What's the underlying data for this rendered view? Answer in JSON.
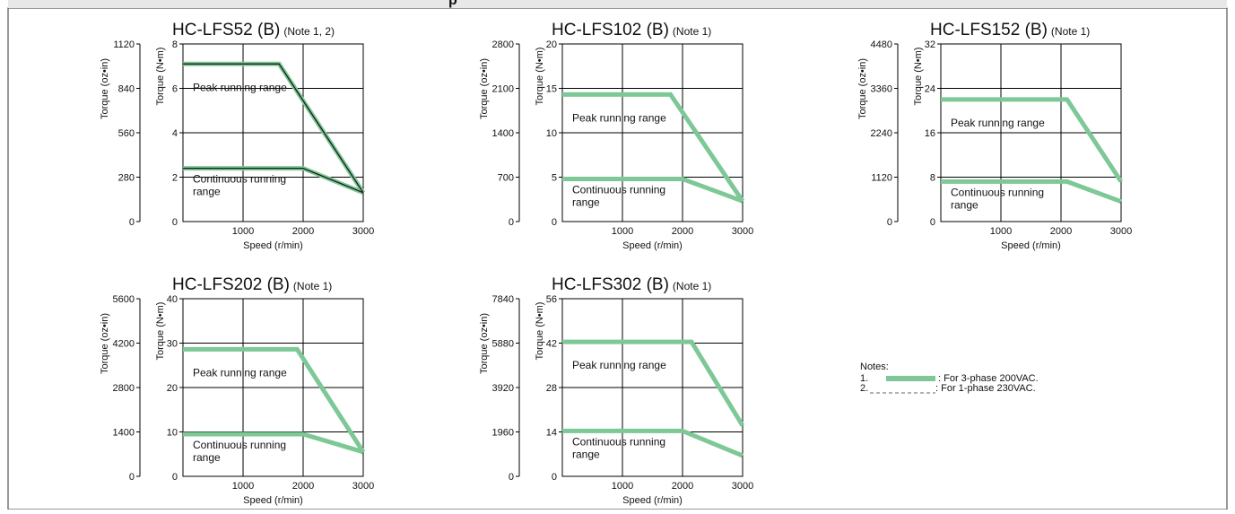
{
  "colors": {
    "three_phase": "#7dc896",
    "one_phase": "#1a1a1a",
    "grid": "#000000",
    "frame": "#555555"
  },
  "header": {
    "visible_fragment": "p"
  },
  "chart_data": [
    {
      "type": "line",
      "title": "HC-LFS52 (B)",
      "note": "(Note 1, 2)",
      "ylabel_primary": "Torque (N•m)",
      "ylabel_secondary": "Torque (oz•in)",
      "xlabel": "Speed (r/min)",
      "xlim": [
        0,
        3000
      ],
      "ylim": [
        0,
        8
      ],
      "x_ticks": [
        "1000",
        "2000",
        "3000"
      ],
      "y_ticks": [
        "0",
        "2",
        "4",
        "6",
        "8"
      ],
      "y2_ticks": [
        "0",
        "280",
        "560",
        "840",
        "1120"
      ],
      "label_peak": "Peak running range",
      "label_continuous": [
        "Continuous running",
        "range"
      ],
      "series": [
        {
          "name": "Peak running range",
          "phase": "3-phase",
          "x": [
            0,
            1600,
            3000
          ],
          "y": [
            7.1,
            7.1,
            1.3
          ]
        },
        {
          "name": "Continuous running range",
          "phase": "3-phase",
          "x": [
            0,
            2000,
            3000
          ],
          "y": [
            2.4,
            2.4,
            1.3
          ]
        },
        {
          "name": "Peak running range",
          "phase": "1-phase",
          "x": [
            0,
            1600,
            3000
          ],
          "y": [
            7.1,
            7.1,
            1.3
          ]
        },
        {
          "name": "Continuous running range",
          "phase": "1-phase",
          "x": [
            0,
            2000,
            3000
          ],
          "y": [
            2.4,
            2.4,
            1.3
          ]
        }
      ]
    },
    {
      "type": "line",
      "title": "HC-LFS102 (B)",
      "note": "(Note 1)",
      "ylabel_primary": "Torque (N•m)",
      "ylabel_secondary": "Torque (oz•in)",
      "xlabel": "Speed (r/min)",
      "xlim": [
        0,
        3000
      ],
      "ylim": [
        0,
        20
      ],
      "x_ticks": [
        "1000",
        "2000",
        "3000"
      ],
      "y_ticks": [
        "0",
        "5",
        "10",
        "15",
        "20"
      ],
      "y2_ticks": [
        "0",
        "700",
        "1400",
        "2100",
        "2800"
      ],
      "label_peak": "Peak running range",
      "label_continuous": [
        "Continuous running",
        "range"
      ],
      "series": [
        {
          "name": "Peak running range",
          "phase": "3-phase",
          "x": [
            0,
            1800,
            3000
          ],
          "y": [
            14.3,
            14.3,
            2.3
          ]
        },
        {
          "name": "Continuous running range",
          "phase": "3-phase",
          "x": [
            0,
            2000,
            3000
          ],
          "y": [
            4.8,
            4.8,
            2.3
          ]
        }
      ]
    },
    {
      "type": "line",
      "title": "HC-LFS152 (B)",
      "note": "(Note 1)",
      "ylabel_primary": "Torque (N•m)",
      "ylabel_secondary": "Torque (oz•in)",
      "xlabel": "Speed (r/min)",
      "xlim": [
        0,
        3000
      ],
      "ylim": [
        0,
        32
      ],
      "x_ticks": [
        "1000",
        "2000",
        "3000"
      ],
      "y_ticks": [
        "0",
        "8",
        "16",
        "24",
        "32"
      ],
      "y2_ticks": [
        "0",
        "1120",
        "2240",
        "3360",
        "4480"
      ],
      "label_peak": "Peak running range",
      "label_continuous": [
        "Continuous running",
        "range"
      ],
      "series": [
        {
          "name": "Peak running range",
          "phase": "3-phase",
          "x": [
            0,
            2100,
            3000
          ],
          "y": [
            22.0,
            22.0,
            7.2
          ]
        },
        {
          "name": "Continuous running range",
          "phase": "3-phase",
          "x": [
            0,
            2100,
            3000
          ],
          "y": [
            7.2,
            7.2,
            3.6
          ]
        }
      ]
    },
    {
      "type": "line",
      "title": "HC-LFS202 (B)",
      "note": "(Note 1)",
      "ylabel_primary": "Torque (N•m)",
      "ylabel_secondary": "Torque (oz•in)",
      "xlabel": "Speed (r/min)",
      "xlim": [
        0,
        3000
      ],
      "ylim": [
        0,
        40
      ],
      "x_ticks": [
        "1000",
        "2000",
        "3000"
      ],
      "y_ticks": [
        "0",
        "10",
        "20",
        "30",
        "40"
      ],
      "y2_ticks": [
        "0",
        "1400",
        "2800",
        "4200",
        "5600"
      ],
      "label_peak": "Peak running range",
      "label_continuous": [
        "Continuous running",
        "range"
      ],
      "series": [
        {
          "name": "Peak running range",
          "phase": "3-phase",
          "x": [
            0,
            1900,
            3000
          ],
          "y": [
            28.6,
            28.6,
            5.5
          ]
        },
        {
          "name": "Continuous running range",
          "phase": "3-phase",
          "x": [
            0,
            2000,
            3000
          ],
          "y": [
            9.5,
            9.5,
            5.5
          ]
        }
      ]
    },
    {
      "type": "line",
      "title": "HC-LFS302 (B)",
      "note": "(Note 1)",
      "ylabel_primary": "Torque (N•m)",
      "ylabel_secondary": "Torque (oz•in)",
      "xlabel": "Speed (r/min)",
      "xlim": [
        0,
        3000
      ],
      "ylim": [
        0,
        56
      ],
      "x_ticks": [
        "1000",
        "2000",
        "3000"
      ],
      "y_ticks": [
        "0",
        "14",
        "28",
        "42",
        "56"
      ],
      "y2_ticks": [
        "0",
        "1960",
        "3920",
        "5880",
        "7840"
      ],
      "label_peak": "Peak running range",
      "label_continuous": [
        "Continuous running",
        "range"
      ],
      "series": [
        {
          "name": "Peak running range",
          "phase": "3-phase",
          "x": [
            0,
            2150,
            3000
          ],
          "y": [
            42.4,
            42.4,
            16.0
          ]
        },
        {
          "name": "Continuous running range",
          "phase": "3-phase",
          "x": [
            0,
            2000,
            3000
          ],
          "y": [
            14.3,
            14.3,
            6.5
          ]
        }
      ]
    }
  ],
  "notes": {
    "title": "Notes:",
    "items": [
      {
        "num": "1.",
        "text": ": For 3-phase 200VAC.",
        "line_style": "solid-thick"
      },
      {
        "num": "2.",
        "text": ": For 1-phase 230VAC.",
        "line_style": "dashed"
      }
    ]
  }
}
